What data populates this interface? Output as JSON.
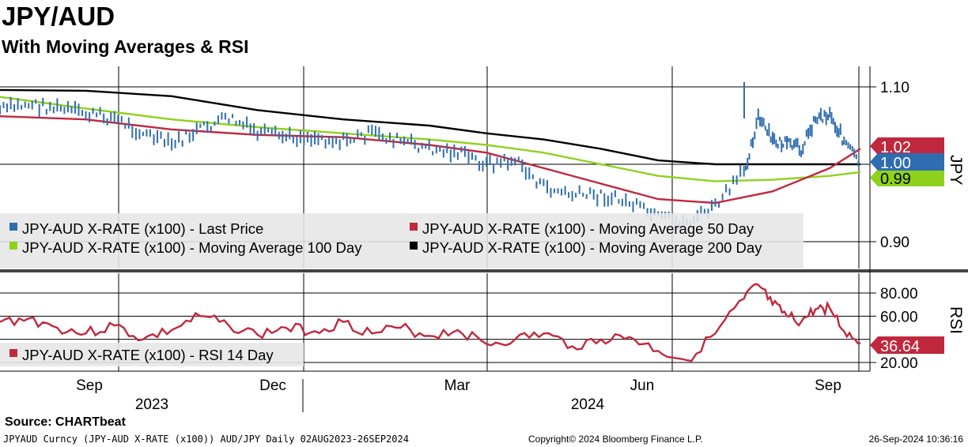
{
  "title": "JPY/AUD",
  "subtitle": "With Moving Averages & RSI",
  "source": "Source: CHARTbeat",
  "footer": {
    "left": "JPYAUD Curncy (JPY-AUD X-RATE (x100)) AUD/JPY  Daily 02AUG2023-26SEP2024",
    "center": "Copyright© 2024 Bloomberg Finance L.P.",
    "right": "26-Sep-2024 10:36:16"
  },
  "colors": {
    "price": "#2f6db0",
    "ma50": "#c0283e",
    "ma100": "#8fd21e",
    "ma200": "#000000",
    "rsi": "#c0283e",
    "legend_bg": "#e6e6e6"
  },
  "chart_data": [
    {
      "type": "line",
      "ylabel": "JPY",
      "ylim": [
        0.86,
        1.13
      ],
      "yticks": [
        "1.10",
        "0.90"
      ],
      "x_tick_labels": [
        "Sep",
        "Dec",
        "Mar",
        "Jun",
        "Sep"
      ],
      "year_labels": [
        "2023",
        "2024"
      ],
      "grid": true,
      "legend_position": "bottom-left",
      "last_value_labels": [
        {
          "series": "ma50",
          "text": "1.02"
        },
        {
          "series": "price",
          "text": "1.00"
        },
        {
          "series": "ma100",
          "text": "0.99"
        }
      ],
      "series": [
        {
          "key": "price",
          "name": "JPY-AUD X-RATE (x100) - Last Price",
          "x": [
            "2023-08-02",
            "2023-08-16",
            "2023-08-30",
            "2023-09-13",
            "2023-09-27",
            "2023-10-11",
            "2023-10-25",
            "2023-11-08",
            "2023-11-22",
            "2023-12-06",
            "2023-12-20",
            "2024-01-03",
            "2024-01-17",
            "2024-01-31",
            "2024-02-14",
            "2024-02-28",
            "2024-03-13",
            "2024-03-27",
            "2024-04-10",
            "2024-04-24",
            "2024-05-08",
            "2024-05-22",
            "2024-06-05",
            "2024-06-19",
            "2024-07-03",
            "2024-07-17",
            "2024-07-31",
            "2024-08-07",
            "2024-08-14",
            "2024-08-21",
            "2024-08-28",
            "2024-09-04",
            "2024-09-11",
            "2024-09-18",
            "2024-09-26"
          ],
          "values": [
            1.07,
            1.078,
            1.072,
            1.065,
            1.06,
            1.04,
            1.025,
            1.045,
            1.06,
            1.04,
            1.035,
            1.035,
            1.03,
            1.04,
            1.03,
            1.02,
            1.015,
            1.0,
            1.005,
            0.97,
            0.96,
            0.96,
            0.95,
            0.93,
            0.925,
            0.945,
            0.99,
            1.06,
            1.03,
            1.025,
            1.02,
            1.06,
            1.065,
            1.03,
            1.0
          ]
        },
        {
          "key": "ma50",
          "name": "JPY-AUD X-RATE (x100) - Moving Average 50 Day",
          "x": [
            "2023-08-02",
            "2023-09-13",
            "2023-10-25",
            "2023-12-06",
            "2024-01-17",
            "2024-02-28",
            "2024-03-27",
            "2024-04-24",
            "2024-05-22",
            "2024-06-19",
            "2024-07-17",
            "2024-08-14",
            "2024-09-11",
            "2024-09-26"
          ],
          "values": [
            1.062,
            1.058,
            1.045,
            1.038,
            1.035,
            1.025,
            1.015,
            0.995,
            0.975,
            0.955,
            0.95,
            0.965,
            0.995,
            1.02
          ]
        },
        {
          "key": "ma100",
          "name": "JPY-AUD X-RATE (x100) - Moving Average 100 Day",
          "x": [
            "2023-08-02",
            "2023-09-13",
            "2023-10-25",
            "2023-12-06",
            "2024-01-17",
            "2024-02-28",
            "2024-03-27",
            "2024-04-24",
            "2024-05-22",
            "2024-06-19",
            "2024-07-17",
            "2024-08-14",
            "2024-09-11",
            "2024-09-26"
          ],
          "values": [
            1.087,
            1.072,
            1.058,
            1.048,
            1.04,
            1.032,
            1.025,
            1.015,
            1.0,
            0.985,
            0.978,
            0.98,
            0.985,
            0.99
          ]
        },
        {
          "key": "ma200",
          "name": "JPY-AUD X-RATE (x100) - Moving Average 200 Day",
          "x": [
            "2023-08-02",
            "2023-09-13",
            "2023-10-25",
            "2023-12-06",
            "2024-01-17",
            "2024-02-28",
            "2024-03-27",
            "2024-04-24",
            "2024-05-22",
            "2024-06-19",
            "2024-07-17",
            "2024-08-14",
            "2024-09-11",
            "2024-09-26"
          ],
          "values": [
            1.096,
            1.095,
            1.088,
            1.07,
            1.058,
            1.05,
            1.04,
            1.032,
            1.02,
            1.005,
            1.0,
            1.0,
            1.0,
            1.0
          ]
        }
      ]
    },
    {
      "type": "line",
      "ylabel": "RSI",
      "ylim": [
        15,
        95
      ],
      "yticks": [
        "80.00",
        "60.00",
        "20.00"
      ],
      "grid": true,
      "legend_position": "bottom-left",
      "last_value_labels": [
        {
          "series": "rsi",
          "text": "36.64"
        }
      ],
      "series": [
        {
          "key": "rsi",
          "name": "JPY-AUD X-RATE (x100) - RSI 14 Day",
          "x": [
            "2023-08-02",
            "2023-08-16",
            "2023-08-30",
            "2023-09-13",
            "2023-09-27",
            "2023-10-11",
            "2023-10-25",
            "2023-11-08",
            "2023-11-22",
            "2023-12-06",
            "2023-12-20",
            "2024-01-03",
            "2024-01-17",
            "2024-01-31",
            "2024-02-14",
            "2024-02-28",
            "2024-03-13",
            "2024-03-27",
            "2024-04-10",
            "2024-04-24",
            "2024-05-08",
            "2024-05-22",
            "2024-06-05",
            "2024-06-19",
            "2024-07-03",
            "2024-07-17",
            "2024-07-31",
            "2024-08-07",
            "2024-08-14",
            "2024-08-21",
            "2024-08-28",
            "2024-09-04",
            "2024-09-11",
            "2024-09-18",
            "2024-09-26"
          ],
          "values": [
            55,
            58,
            50,
            45,
            52,
            40,
            48,
            60,
            52,
            44,
            50,
            47,
            55,
            45,
            50,
            43,
            48,
            36,
            40,
            45,
            34,
            40,
            42,
            30,
            22,
            45,
            75,
            87,
            70,
            60,
            55,
            66,
            67,
            47,
            36.64
          ]
        }
      ]
    }
  ]
}
